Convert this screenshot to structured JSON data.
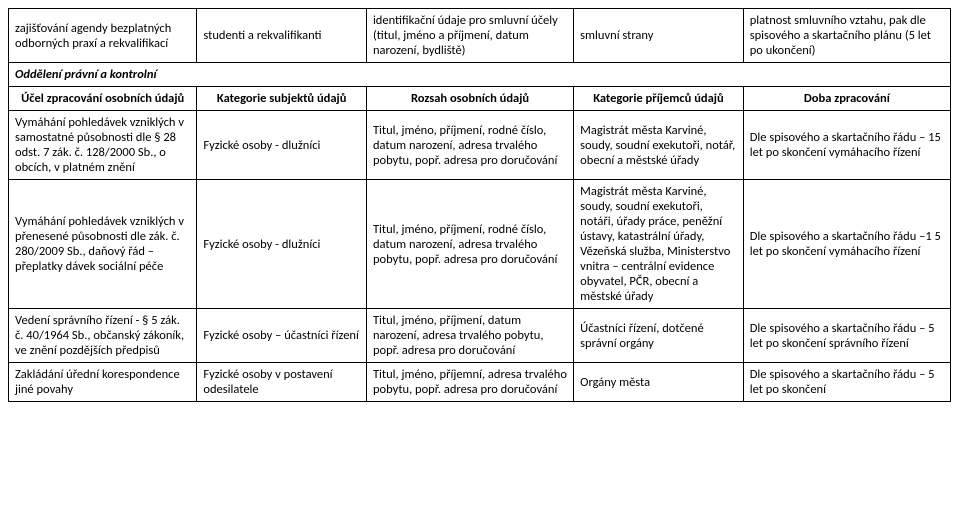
{
  "row0": {
    "c1": "zajišťování agendy bezplatných odborných praxí a rekvalifikací",
    "c2": "studenti a rekvalifikanti",
    "c3": "identifikační údaje pro smluvní účely (titul, jméno a příjmení, datum narození, bydliště)",
    "c4": "smluvní strany",
    "c5": "platnost smluvního vztahu, pak dle spisového a skartačního plánu (5 let po ukončení)"
  },
  "section": "Oddělení právní a kontrolní",
  "hdr": {
    "c1": "Účel zpracování osobních údajů",
    "c2": "Kategorie subjektů údajů",
    "c3": "Rozsah osobních údajů",
    "c4": "Kategorie příjemců údajů",
    "c5": "Doba zpracování"
  },
  "r1": {
    "c1": "Vymáhání pohledávek vzniklých v samostatné působnosti dle § 28 odst. 7 zák. č. 128/2000 Sb., o obcích, v platném znění",
    "c2": "Fyzické osoby - dlužníci",
    "c3": "Titul, jméno, příjmení, rodné číslo, datum narození, adresa trvalého pobytu, popř. adresa pro doručování",
    "c4": "Magistrát města Karviné, soudy, soudní exekutoři, notář, obecní a městské úřady",
    "c5": "Dle spisového a skartačního řádu – 15 let po skončení vymáhacího řízení"
  },
  "r2": {
    "c1": "Vymáhání pohledávek vzniklých v přenesené působnosti dle zák. č. 280/2009 Sb., daňový řád – přeplatky dávek sociální péče",
    "c2": "Fyzické osoby - dlužníci",
    "c3": "Titul, jméno, příjmení, rodné číslo, datum narození, adresa trvalého pobytu, popř. adresa pro doručování",
    "c4": "Magistrát města Karviné, soudy, soudní exekutoři, notáři, úřady práce, peněžní ústavy, katastrální úřady, Vězeňská služba, Ministerstvo vnitra – centrální evidence obyvatel, PČR, obecní a městské úřady",
    "c5": "Dle spisového a skartačního řádu –1 5 let po skončení vymáhacího řízení"
  },
  "r3": {
    "c1": "Vedení správního řízení - § 5 zák. č. 40/1964 Sb., občanský zákoník, ve znění pozdějších předpisů",
    "c2": "Fyzické osoby – účastníci řízení",
    "c3": "Titul, jméno, příjmení, datum narození, adresa trvalého pobytu, popř. adresa pro doručování",
    "c4": "Účastníci řízení, dotčené správní orgány",
    "c5": "Dle spisového a skartačního řádu – 5 let po skončení správního řízení"
  },
  "r4": {
    "c1": "Zakládání úřední korespondence jiné povahy",
    "c2": "Fyzické osoby v postavení odesilatele",
    "c3": "Titul, jméno, příjemní, adresa trvalého pobytu, popř. adresa pro doručování",
    "c4": "Orgány města",
    "c5": "Dle spisového a skartačního řádu – 5 let po skončení"
  }
}
